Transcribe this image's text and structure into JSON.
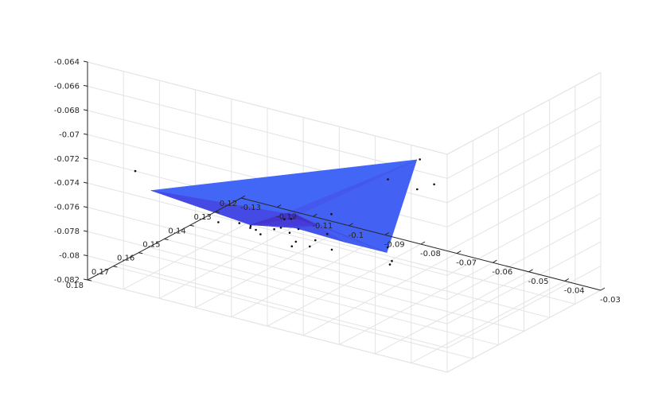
{
  "chart_data": {
    "type": "surface3d",
    "title": "",
    "xlabel": "",
    "ylabel": "",
    "zlabel": "",
    "grid": true,
    "axes": {
      "x": {
        "range": [
          -0.13,
          -0.03
        ],
        "ticks": [
          -0.13,
          -0.12,
          -0.11,
          -0.1,
          -0.09,
          -0.08,
          -0.07,
          -0.06,
          -0.05,
          -0.04,
          -0.03
        ],
        "tick_labels": [
          "-0.13",
          "-0.12",
          "-0.11",
          "-0.1",
          "-0.09",
          "-0.08",
          "-0.07",
          "-0.06",
          "-0.05",
          "-0.04",
          "-0.03"
        ]
      },
      "y": {
        "range": [
          0.12,
          0.18
        ],
        "ticks": [
          0.12,
          0.13,
          0.14,
          0.15,
          0.16,
          0.17,
          0.18
        ],
        "tick_labels": [
          "0.12",
          "0.13",
          "0.14",
          "0.15",
          "0.16",
          "0.17",
          "0.18"
        ]
      },
      "z": {
        "range": [
          -0.082,
          -0.064
        ],
        "ticks": [
          -0.082,
          -0.08,
          -0.078,
          -0.076,
          -0.074,
          -0.072,
          -0.07,
          -0.068,
          -0.066,
          -0.064
        ],
        "tick_labels": [
          "-0.082",
          "-0.08",
          "-0.078",
          "-0.076",
          "-0.074",
          "-0.072",
          "-0.07",
          "-0.068",
          "-0.066",
          "-0.064"
        ]
      }
    },
    "colormap": {
      "name": "parula",
      "color_low": "#3e26a8",
      "color_mid": "#2e8ee6",
      "color_high": "#f5c62f"
    },
    "surface_vertices": [
      {
        "id": "A",
        "x": -0.118,
        "y": 0.172,
        "z": -0.0746
      },
      {
        "id": "B",
        "x": -0.112,
        "y": 0.128,
        "z": -0.081
      },
      {
        "id": "C",
        "x": -0.047,
        "y": 0.168,
        "z": -0.0671
      },
      {
        "id": "D",
        "x": -0.098,
        "y": 0.143,
        "z": -0.0784
      },
      {
        "id": "E",
        "x": -0.072,
        "y": 0.161,
        "z": -0.076
      },
      {
        "id": "F",
        "x": -0.083,
        "y": 0.165,
        "z": -0.0758
      },
      {
        "id": "G",
        "x": -0.076,
        "y": 0.155,
        "z": -0.0776
      },
      {
        "id": "H",
        "x": -0.066,
        "y": 0.153,
        "z": -0.0779
      },
      {
        "id": "I",
        "x": -0.106,
        "y": 0.15,
        "z": -0.079
      },
      {
        "id": "J",
        "x": -0.102,
        "y": 0.138,
        "z": -0.0795
      },
      {
        "id": "K",
        "x": -0.086,
        "y": 0.152,
        "z": -0.0773
      }
    ],
    "surface_faces": [
      {
        "v": [
          "A",
          "C",
          "F"
        ],
        "level": 0.24
      },
      {
        "v": [
          "F",
          "C",
          "E"
        ],
        "level": 0.92
      },
      {
        "v": [
          "F",
          "E",
          "G"
        ],
        "level": 0.62
      },
      {
        "v": [
          "G",
          "E",
          "C"
        ],
        "level": 0.27
      },
      {
        "v": [
          "A",
          "F",
          "I"
        ],
        "level": 0.21
      },
      {
        "v": [
          "F",
          "G",
          "K"
        ],
        "level": 0.19
      },
      {
        "v": [
          "K",
          "G",
          "H"
        ],
        "level": 0.22
      },
      {
        "v": [
          "A",
          "I",
          "B"
        ],
        "level": 0.16
      },
      {
        "v": [
          "I",
          "F",
          "K"
        ],
        "level": 0.14
      },
      {
        "v": [
          "I",
          "K",
          "J"
        ],
        "level": 0.11
      },
      {
        "v": [
          "I",
          "J",
          "B"
        ],
        "level": 0.08
      },
      {
        "v": [
          "J",
          "K",
          "D"
        ],
        "level": 0.06
      },
      {
        "v": [
          "J",
          "D",
          "B"
        ],
        "level": 0.03
      },
      {
        "v": [
          "K",
          "H",
          "D"
        ],
        "level": 0.18
      },
      {
        "v": [
          "D",
          "H",
          "C"
        ],
        "level": 0.23
      },
      {
        "v": [
          "B",
          "D",
          "C"
        ],
        "level": 0.2
      }
    ],
    "data_points": [
      {
        "x": -0.121,
        "y": 0.174,
        "z": -0.073
      },
      {
        "x": -0.044,
        "y": 0.171,
        "z": -0.0665
      },
      {
        "x": -0.06,
        "y": 0.161,
        "z": -0.0705
      },
      {
        "x": -0.054,
        "y": 0.158,
        "z": -0.0712
      },
      {
        "x": -0.05,
        "y": 0.157,
        "z": -0.0706
      },
      {
        "x": -0.075,
        "y": 0.162,
        "z": -0.0744
      },
      {
        "x": -0.087,
        "y": 0.158,
        "z": -0.077
      },
      {
        "x": -0.079,
        "y": 0.158,
        "z": -0.0768
      },
      {
        "x": -0.11,
        "y": 0.157,
        "z": -0.0783
      },
      {
        "x": -0.107,
        "y": 0.153,
        "z": -0.0786
      },
      {
        "x": -0.106,
        "y": 0.15,
        "z": -0.0791
      },
      {
        "x": -0.099,
        "y": 0.16,
        "z": -0.0776
      },
      {
        "x": -0.096,
        "y": 0.162,
        "z": -0.0773
      },
      {
        "x": -0.094,
        "y": 0.163,
        "z": -0.0774
      },
      {
        "x": -0.086,
        "y": 0.162,
        "z": -0.0779
      },
      {
        "x": -0.088,
        "y": 0.15,
        "z": -0.0789
      },
      {
        "x": -0.103,
        "y": 0.145,
        "z": -0.0797
      },
      {
        "x": -0.098,
        "y": 0.146,
        "z": -0.0795
      },
      {
        "x": -0.092,
        "y": 0.152,
        "z": -0.0791
      },
      {
        "x": -0.086,
        "y": 0.155,
        "z": -0.0787
      },
      {
        "x": -0.082,
        "y": 0.152,
        "z": -0.079
      },
      {
        "x": -0.108,
        "y": 0.134,
        "z": -0.0805
      },
      {
        "x": -0.109,
        "y": 0.13,
        "z": -0.081
      },
      {
        "x": -0.104,
        "y": 0.141,
        "z": -0.0801
      },
      {
        "x": -0.08,
        "y": 0.133,
        "z": -0.0808
      },
      {
        "x": -0.071,
        "y": 0.144,
        "z": -0.08
      },
      {
        "x": -0.068,
        "y": 0.149,
        "z": -0.0795
      }
    ]
  }
}
